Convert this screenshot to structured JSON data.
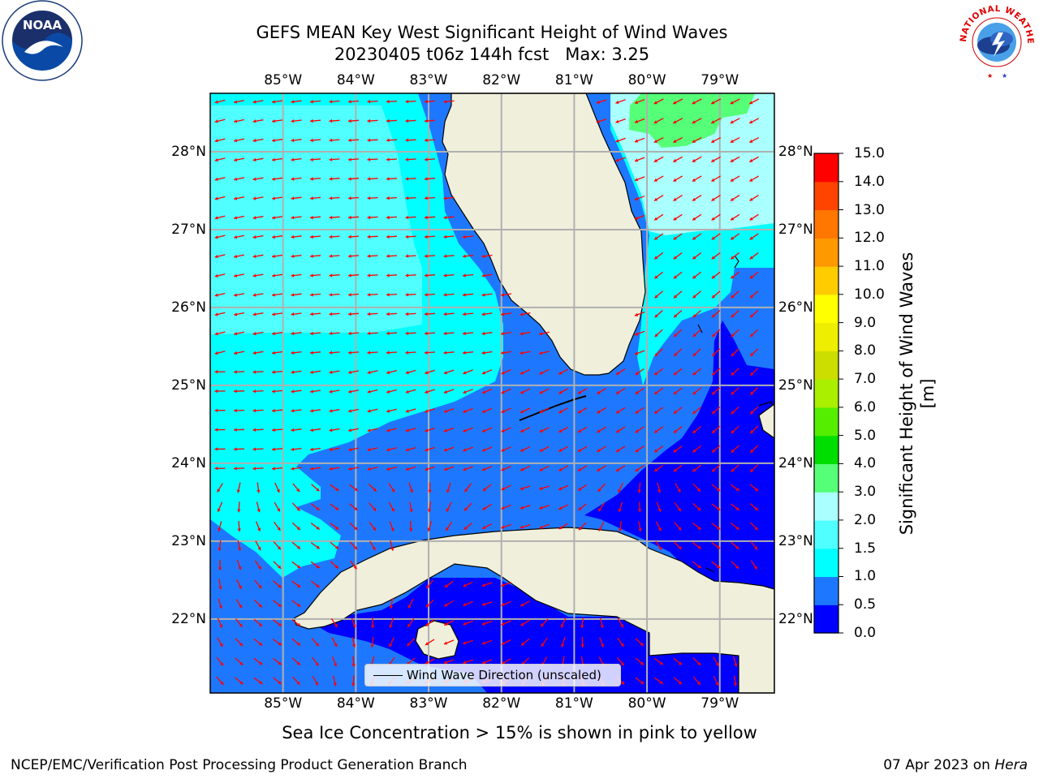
{
  "title": {
    "line1": "GEFS MEAN Key West Significant Height of Wind Waves",
    "line2": "20230405 t06z 144h fcst   Max: 3.25"
  },
  "map": {
    "lon_range": [
      -86.0,
      -78.25
    ],
    "lat_range": [
      21.05,
      28.75
    ],
    "lon_ticks": [
      {
        "value": -85,
        "label": "85°W"
      },
      {
        "value": -84,
        "label": "84°W"
      },
      {
        "value": -83,
        "label": "83°W"
      },
      {
        "value": -82,
        "label": "82°W"
      },
      {
        "value": -81,
        "label": "81°W"
      },
      {
        "value": -80,
        "label": "80°W"
      },
      {
        "value": -79,
        "label": "79°W"
      }
    ],
    "lat_ticks": [
      {
        "value": 28,
        "label": "28°N"
      },
      {
        "value": 27,
        "label": "27°N"
      },
      {
        "value": 26,
        "label": "26°N"
      },
      {
        "value": 25,
        "label": "25°N"
      },
      {
        "value": 24,
        "label": "24°N"
      },
      {
        "value": 23,
        "label": "23°N"
      },
      {
        "value": 22,
        "label": "22°N"
      }
    ],
    "land_color": "#efefdc",
    "gridline_color": "#b0b0b0",
    "arrow_color": "#ff0000",
    "legend_label": "Wind Wave Direction (unscaled)"
  },
  "colorbar": {
    "label": "Significant Height of Wind Waves [m]",
    "ticks": [
      "0.0",
      "0.5",
      "1.0",
      "1.5",
      "2.0",
      "3.0",
      "4.0",
      "5.0",
      "6.0",
      "7.0",
      "8.0",
      "9.0",
      "10.0",
      "11.0",
      "12.0",
      "13.0",
      "14.0",
      "15.0"
    ],
    "colors": [
      "#0000ff",
      "#1e78ff",
      "#00ffff",
      "#50ffff",
      "#aaffff",
      "#55ff77",
      "#00dd00",
      "#55ee00",
      "#aaee00",
      "#ccdd00",
      "#eeee00",
      "#ffff00",
      "#ffcc00",
      "#ff9900",
      "#ff7700",
      "#ff4400",
      "#ff0000"
    ]
  },
  "footer": {
    "ice_note": "Sea Ice Concentration > 15% is shown in pink to yellow",
    "credit_left": "NCEP/EMC/Verification Post Processing Product Generation Branch",
    "date": "07 Apr 2023",
    "on": "on",
    "machine": "Hera"
  },
  "logos": {
    "noaa": "NOAA",
    "nws_text": "NATIONAL WEATHER SERVICE"
  }
}
